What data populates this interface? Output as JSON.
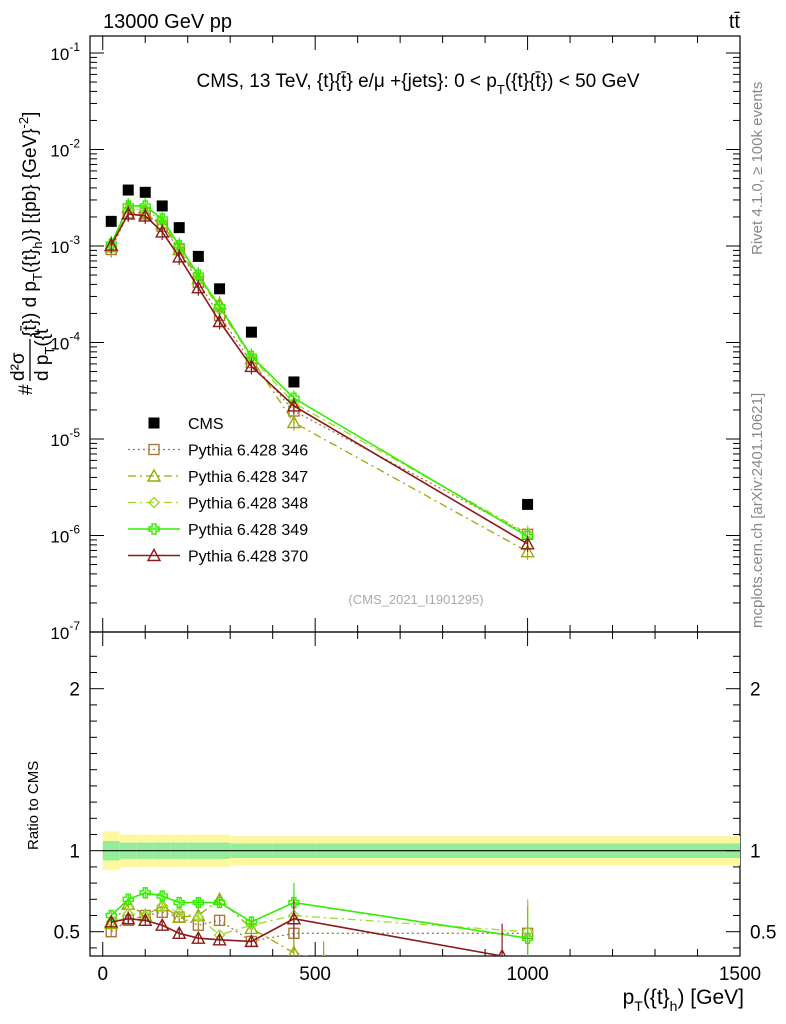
{
  "header": {
    "left": "13000 GeV pp",
    "right": "tt̄"
  },
  "side_labels": {
    "rivet": "Rivet 4.1.0, ≥ 100k events",
    "mcplots": "mcplots.cern.ch [arXiv:2401.10621]"
  },
  "chart_data": [
    {
      "id": "main",
      "type": "scatter",
      "title": "CMS, 13 TeV, {t}{t̄} e/μ +{jets}: 0 <  p_T({t}{t̄}) < 50 GeV",
      "title_parts": {
        "a": "CMS, 13 TeV, {t}{t̄} e/μ +{jets}: 0 <  p",
        "sub": "T",
        "b": "({t}{t̄}) < 50 GeV"
      },
      "ylabel": "#d²σ/d p_T({t}_h) d p_T({t̄}) [{pb} {GeV}⁻²]",
      "ylabel_parts": {
        "frac_num": "d²σ",
        "frac_den": "d p",
        "den_sub": "T",
        "den_tail": "({t",
        "rest": "{t̄}) d p",
        "rest_sub": "T",
        "rest2": "({t}",
        "rest2_sub": "h",
        "rest3": ")} [{pb} {GeV}",
        "unit_sup": "-2",
        "close": "]",
        "hash": "#"
      },
      "yscale": "log",
      "ylim": [
        1e-07,
        0.15
      ],
      "xlim": [
        -30,
        1500
      ],
      "ytick_exponents": [
        -7,
        -6,
        -5,
        -4,
        -3,
        -2,
        -1
      ],
      "watermark": "(CMS_2021_I1901295)",
      "series": [
        {
          "name": "CMS",
          "style": "data",
          "color": "#000000",
          "x": [
            20,
            60,
            100,
            140,
            180,
            225,
            275,
            350,
            450,
            1000
          ],
          "y": [
            0.0018,
            0.0038,
            0.0036,
            0.0026,
            0.00155,
            0.00078,
            0.00036,
            0.000128,
            3.9e-05,
            2.1e-06
          ]
        },
        {
          "name": "Pythia 6.428 346",
          "style": "dotted",
          "marker": "square",
          "color": "#a87a3a",
          "x": [
            20,
            60,
            100,
            140,
            180,
            225,
            275,
            350,
            450,
            1000
          ],
          "y": [
            0.00092,
            0.0022,
            0.0022,
            0.0016,
            0.00092,
            0.00042,
            0.00019,
            6.2e-05,
            1.95e-05,
            1.03e-06
          ]
        },
        {
          "name": "Pythia 6.428 347",
          "style": "dashdot",
          "marker": "triangle",
          "color": "#99aa00",
          "x": [
            20,
            60,
            100,
            140,
            180,
            225,
            275,
            350,
            450,
            1000
          ],
          "y": [
            0.00098,
            0.0025,
            0.00215,
            0.0017,
            0.00092,
            0.00046,
            0.00025,
            6.8e-05,
            1.48e-05,
            6.8e-07
          ]
        },
        {
          "name": "Pythia 6.428 348",
          "style": "dashdot",
          "marker": "diamond",
          "color": "#a0d830",
          "x": [
            20,
            60,
            100,
            140,
            180,
            225,
            275,
            350,
            450,
            1000
          ],
          "y": [
            0.00102,
            0.0024,
            0.0024,
            0.0018,
            0.00098,
            0.00048,
            0.00022,
            7e-05,
            2.35e-05,
            1.05e-06
          ]
        },
        {
          "name": "Pythia 6.428 349",
          "style": "solid",
          "marker": "cross",
          "color": "#33ee00",
          "x": [
            20,
            60,
            100,
            140,
            180,
            225,
            275,
            350,
            450,
            1000
          ],
          "y": [
            0.00105,
            0.0026,
            0.0026,
            0.0019,
            0.00101,
            0.0005,
            0.000235,
            7.2e-05,
            2.65e-05,
            9.8e-07
          ]
        },
        {
          "name": "Pythia 6.428 370",
          "style": "solid",
          "marker": "triangle",
          "color": "#8b1a1a",
          "x": [
            20,
            60,
            100,
            140,
            180,
            225,
            275,
            350,
            450,
            1000
          ],
          "y": [
            0.00102,
            0.00215,
            0.00205,
            0.0014,
            0.00077,
            0.00037,
            0.000165,
            5.65e-05,
            2.2e-05,
            8.2e-07
          ]
        }
      ]
    },
    {
      "id": "ratio",
      "type": "line",
      "ylabel": "Ratio to CMS",
      "xlabel": "p_T({t}_h) [GeV]",
      "xlabel_parts": {
        "a": "p",
        "sub": "T",
        "b": "({t}",
        "sub2": "h",
        "c": ") [GeV]"
      },
      "ylim": [
        0.35,
        2.35
      ],
      "xlim": [
        -30,
        1500
      ],
      "yticks": [
        0.5,
        1,
        2
      ],
      "ytick_labels": [
        "0.5",
        "1",
        "2"
      ],
      "xticks": [
        0,
        500,
        1000,
        1500
      ],
      "xtick_labels": [
        "0",
        "500",
        "1000",
        "1500"
      ],
      "band_x": [
        0,
        40,
        80,
        120,
        160,
        200,
        250,
        300,
        400,
        500,
        1500
      ],
      "band_green": [
        0.06,
        0.05,
        0.05,
        0.05,
        0.05,
        0.05,
        0.05,
        0.045,
        0.045,
        0.045
      ],
      "band_yellow": [
        0.12,
        0.1,
        0.1,
        0.1,
        0.1,
        0.1,
        0.1,
        0.09,
        0.09,
        0.09
      ],
      "series": [
        {
          "name": "Pythia 6.428 346",
          "style": "dotted",
          "marker": "square",
          "color": "#a87a3a",
          "x": [
            20,
            60,
            100,
            140,
            180,
            225,
            275,
            350,
            450,
            1000
          ],
          "y": [
            0.5,
            0.57,
            0.6,
            0.62,
            0.59,
            0.54,
            0.57,
            0.44,
            0.49,
            0.49
          ]
        },
        {
          "name": "Pythia 6.428 347",
          "style": "dashdot",
          "marker": "triangle",
          "color": "#99aa00",
          "x": [
            20,
            60,
            100,
            140,
            180,
            225,
            275,
            350,
            450,
            520
          ],
          "y": [
            0.55,
            0.67,
            0.6,
            0.66,
            0.59,
            0.6,
            0.7,
            0.52,
            0.37,
            0.32
          ]
        },
        {
          "name": "Pythia 6.428 348",
          "style": "dashdot",
          "marker": "diamond",
          "color": "#a0d830",
          "x": [
            20,
            60,
            100,
            140,
            180,
            225,
            275,
            350,
            450,
            1000
          ],
          "y": [
            0.56,
            0.61,
            0.6,
            0.66,
            0.62,
            0.59,
            0.48,
            0.54,
            0.6,
            0.5
          ]
        },
        {
          "name": "Pythia 6.428 349",
          "style": "solid",
          "marker": "cross",
          "color": "#33ee00",
          "x": [
            20,
            60,
            100,
            140,
            180,
            225,
            275,
            350,
            450,
            1000
          ],
          "y": [
            0.6,
            0.7,
            0.74,
            0.72,
            0.68,
            0.68,
            0.68,
            0.56,
            0.68,
            0.46
          ]
        },
        {
          "name": "Pythia 6.428 370",
          "style": "solid",
          "marker": "triangle",
          "color": "#8b1a1a",
          "x": [
            20,
            60,
            100,
            140,
            180,
            225,
            275,
            350,
            450,
            940
          ],
          "y": [
            0.56,
            0.58,
            0.57,
            0.54,
            0.49,
            0.46,
            0.45,
            0.44,
            0.58,
            0.35
          ]
        }
      ]
    }
  ],
  "legend": {
    "entries": [
      "CMS",
      "Pythia 6.428 346",
      "Pythia 6.428 347",
      "Pythia 6.428 348",
      "Pythia 6.428 349",
      "Pythia 6.428 370"
    ]
  }
}
